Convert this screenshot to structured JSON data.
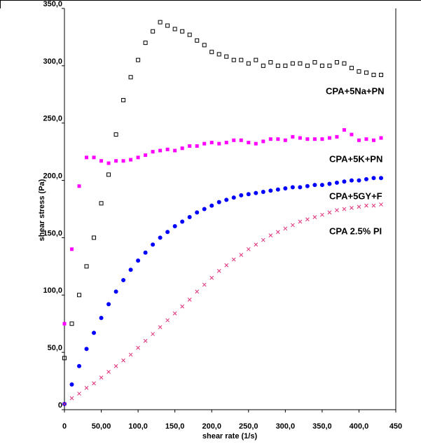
{
  "chart_data": {
    "type": "scatter",
    "xlabel": "shear rate (1/s)",
    "ylabel": "shear stress (Pa)",
    "xlim": [
      0,
      450
    ],
    "ylim": [
      0,
      350
    ],
    "xticks": [
      0,
      {
        "value": 50,
        "label": "50,00"
      },
      {
        "value": 100,
        "label": "100,0"
      },
      {
        "value": 150,
        "label": "150,0"
      },
      {
        "value": 200,
        "label": "200,0"
      },
      {
        "value": 250,
        "label": "250,0"
      },
      {
        "value": 300,
        "label": "300,0"
      },
      {
        "value": 350,
        "label": "350,0"
      },
      {
        "value": 400,
        "label": "400,0"
      },
      450
    ],
    "yticks": [
      0,
      {
        "value": 50,
        "label": "50,0"
      },
      {
        "value": 100,
        "label": "100,0"
      },
      {
        "value": 150,
        "label": "150,0"
      },
      {
        "value": 200,
        "label": "200,0"
      },
      {
        "value": 250,
        "label": "250,0"
      },
      {
        "value": 300,
        "label": "300,0"
      },
      {
        "value": 350,
        "label": "350,0"
      }
    ],
    "x": [
      0,
      10,
      20,
      30,
      40,
      50,
      60,
      70,
      80,
      90,
      100,
      110,
      120,
      130,
      140,
      150,
      160,
      170,
      180,
      190,
      200,
      210,
      220,
      230,
      240,
      250,
      260,
      270,
      280,
      290,
      300,
      310,
      320,
      330,
      340,
      350,
      360,
      370,
      380,
      390,
      400,
      410,
      420,
      430
    ],
    "series": [
      {
        "name": "CPA+5Na+PN",
        "color": "#000000",
        "marker": "square-open",
        "values": [
          45,
          75,
          100,
          125,
          150,
          180,
          205,
          240,
          270,
          290,
          305,
          320,
          330,
          338,
          335,
          332,
          330,
          327,
          322,
          318,
          312,
          310,
          308,
          305,
          305,
          302,
          305,
          300,
          303,
          300,
          300,
          302,
          302,
          300,
          303,
          300,
          300,
          303,
          302,
          298,
          295,
          294,
          292,
          292
        ]
      },
      {
        "name": "CPA+5K+PN",
        "color": "#ff00ff",
        "marker": "square",
        "values": [
          75,
          140,
          195,
          220,
          220,
          217,
          215,
          217,
          217,
          218,
          220,
          222,
          225,
          226,
          227,
          226,
          228,
          230,
          230,
          232,
          233,
          232,
          233,
          235,
          235,
          233,
          232,
          234,
          236,
          236,
          235,
          238,
          237,
          236,
          236,
          236,
          237,
          238,
          244,
          240,
          235,
          236,
          235,
          237
        ]
      },
      {
        "name": "CPA+5GY+F",
        "color": "#0000ff",
        "marker": "circle",
        "values": [
          5,
          22,
          38,
          53,
          67,
          80,
          92,
          103,
          113,
          122,
          130,
          137,
          144,
          150,
          155,
          160,
          164,
          168,
          172,
          175,
          178,
          181,
          183,
          185,
          187,
          188,
          189,
          190,
          191,
          192,
          193,
          194,
          194,
          195,
          196,
          196,
          197,
          198,
          199,
          200,
          200,
          201,
          202,
          202
        ]
      },
      {
        "name": "CPA 2.5% PI",
        "color": "#e0307a",
        "marker": "x",
        "values": [
          5,
          10,
          14,
          19,
          23,
          28,
          33,
          38,
          43,
          48,
          54,
          60,
          66,
          72,
          78,
          84,
          90,
          96,
          103,
          109,
          115,
          121,
          126,
          131,
          135,
          140,
          144,
          148,
          152,
          155,
          158,
          161,
          164,
          166,
          168,
          170,
          172,
          174,
          175,
          176,
          177,
          178,
          178,
          179
        ]
      }
    ]
  }
}
